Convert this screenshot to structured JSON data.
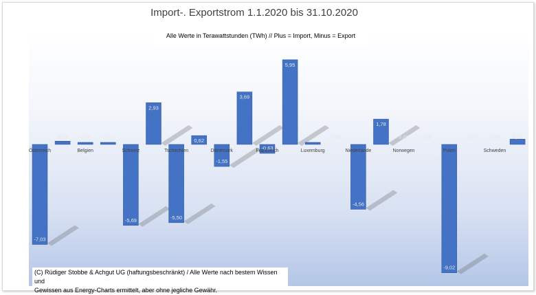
{
  "chart_data": {
    "type": "bar",
    "title": "Import-. Exportstrom 1.1.2020 bis 31.10.2020",
    "subtitle": "Alle Werte in Terawattstunden (TWh) // Plus = Import, Minus = Export",
    "footnote_line1": "(C) Rüdiger Stobbe & Achgut UG (haftungsbeschränkt) / Alle Werte nach bestem Wissen und",
    "footnote_line2": "Gewissen aus Energy-Charts ermittelt, aber ohne jegliche Gewähr.",
    "categories": [
      "Österreich",
      "",
      "Belgien",
      "",
      "Schweiz",
      "",
      "Tschechien",
      "",
      "Dänemark",
      "",
      "Frankreich",
      "",
      "Luxemburg",
      "",
      "Niederlande",
      "",
      "Norwegen",
      "",
      "Polen",
      "",
      "Schweden",
      ""
    ],
    "values": [
      -7.03,
      0.23,
      0.01,
      0.01,
      -5.69,
      2.93,
      -5.5,
      0.62,
      -1.55,
      3.69,
      -0.63,
      5.95,
      0.12,
      0.0,
      -4.56,
      1.78,
      0.0,
      0.0,
      -9.02,
      0.0,
      0.0,
      0.37
    ],
    "value_labels": [
      "-7,03",
      "0,23",
      "0,01",
      "0,01",
      "-5,69",
      "2,93",
      "-5,50",
      "0,62",
      "-1,55",
      "3,69",
      "-0,63",
      "5,95",
      "",
      "0,00",
      "-4,56",
      "1,78",
      "0,00",
      "0,00",
      "-9,02",
      "0,00",
      "0,00",
      "0,37"
    ],
    "ylim": [
      -10,
      6.5
    ],
    "colors": {
      "bar": "#4472c4",
      "bar_edge": "#2f5597"
    }
  }
}
